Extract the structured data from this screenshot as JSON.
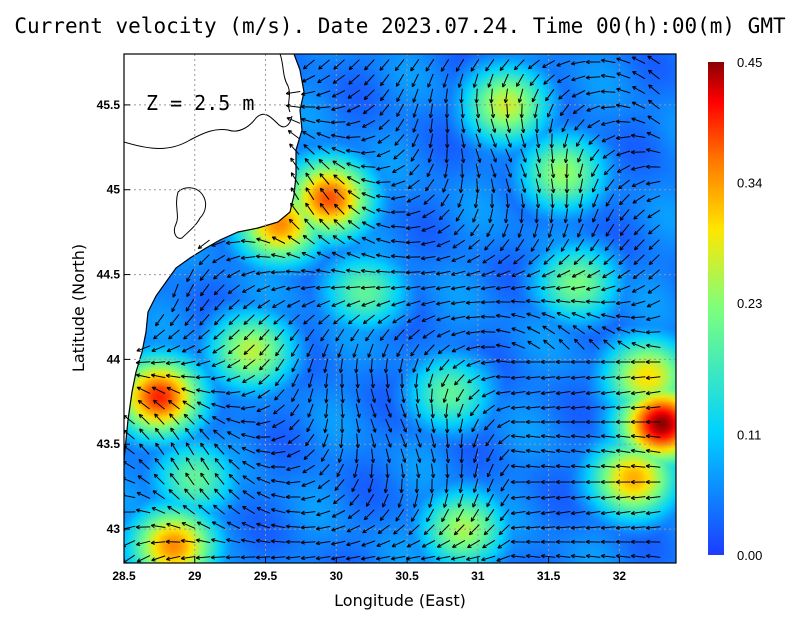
{
  "title": "Current velocity (m/s). Date 2023.07.24. Time 00(h):00(m) GMT",
  "depth_label": "Z = 2.5 m",
  "colors": {
    "land": "#ffffff",
    "coastline": "#000000",
    "arrow": "#000000",
    "grid": "#999999"
  },
  "chart_data": {
    "type": "heatmap",
    "xlabel": "Longitude (East)",
    "ylabel": "Latitude (North)",
    "xlim": [
      28.5,
      32.4
    ],
    "ylim": [
      42.8,
      45.8
    ],
    "x_ticks": [
      "28.5",
      "29",
      "29.5",
      "30",
      "30.5",
      "31",
      "31.5",
      "32"
    ],
    "y_ticks": [
      "43",
      "43.5",
      "44",
      "44.5",
      "45",
      "45.5"
    ],
    "x_tick_values": [
      28.5,
      29,
      29.5,
      30,
      30.5,
      31,
      31.5,
      32
    ],
    "y_tick_values": [
      43,
      43.5,
      44,
      44.5,
      45,
      45.5
    ],
    "grid": true,
    "colorbar": {
      "min": 0.0,
      "max": 0.45,
      "labels": [
        "0.45",
        "0.34",
        "0.23",
        "0.11",
        "0.00"
      ],
      "label_values": [
        0.45,
        0.34,
        0.23,
        0.11,
        0.0
      ],
      "colors": [
        "#1c3cff",
        "#00d2ff",
        "#7dff7d",
        "#ffe600",
        "#ff7800",
        "#ff0000",
        "#8b0000"
      ]
    },
    "speed_hotspots": [
      {
        "lon": 28.75,
        "lat": 43.78,
        "speed": 0.4
      },
      {
        "lon": 32.3,
        "lat": 43.62,
        "speed": 0.45
      },
      {
        "lon": 29.95,
        "lat": 44.95,
        "speed": 0.38
      },
      {
        "lon": 29.6,
        "lat": 44.8,
        "speed": 0.35
      },
      {
        "lon": 28.85,
        "lat": 42.9,
        "speed": 0.35
      },
      {
        "lon": 31.2,
        "lat": 45.5,
        "speed": 0.27
      },
      {
        "lon": 32.1,
        "lat": 43.3,
        "speed": 0.33
      },
      {
        "lon": 32.2,
        "lat": 43.9,
        "speed": 0.3
      },
      {
        "lon": 31.7,
        "lat": 44.45,
        "speed": 0.22
      },
      {
        "lon": 31.6,
        "lat": 45.1,
        "speed": 0.24
      },
      {
        "lon": 30.2,
        "lat": 44.4,
        "speed": 0.2
      },
      {
        "lon": 30.8,
        "lat": 43.8,
        "speed": 0.2
      },
      {
        "lon": 29.4,
        "lat": 44.05,
        "speed": 0.26
      },
      {
        "lon": 29.0,
        "lat": 43.3,
        "speed": 0.2
      },
      {
        "lon": 30.9,
        "lat": 43.0,
        "speed": 0.25
      }
    ]
  }
}
